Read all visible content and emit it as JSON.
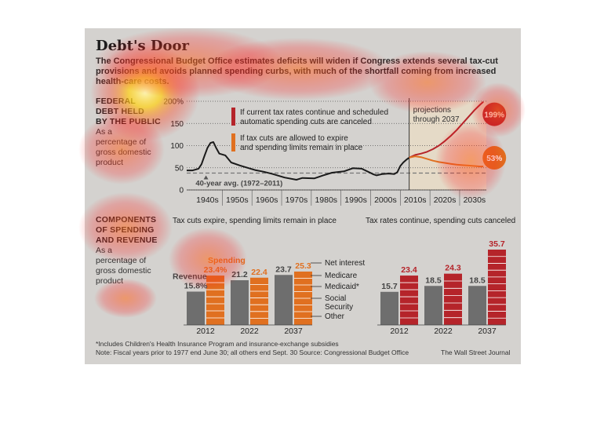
{
  "title": "Debt's Door",
  "subtitle": "The Congressional Budget Office estimates deficits will widen if Congress extends several tax-cut provisions and avoids planned spending curbs, with much of the shortfall coming from increased health-care costs.",
  "top_section": {
    "heading_lines": [
      "FEDERAL",
      "DEBT HELD",
      "BY THE PUBLIC"
    ],
    "sub_lines": [
      "As a",
      "percentage of",
      "gross domestic",
      "product"
    ]
  },
  "bottom_section": {
    "heading_lines": [
      "COMPONENTS",
      "OF SPENDING",
      "AND REVENUE"
    ],
    "sub_lines": [
      "As a",
      "percentage of",
      "gross domestic",
      "product"
    ]
  },
  "footnote": "*Includes Children's Health Insurance Program and insurance-exchange subsidies",
  "note": "Note: Fiscal years prior to 1977 end June 30; all others end Sept. 30   Source: Congressional Budget Office",
  "credit": "The Wall Street Journal",
  "colors": {
    "current_policy": "#b5242a",
    "current_law": "#e07020",
    "historical": "#1a1a1a",
    "revenue": "#6e6e6e",
    "projection_shade": "#e7dcc6",
    "average": "#777777"
  },
  "chart_data": [
    {
      "type": "line",
      "y_ticks": [
        "0",
        "50",
        "100",
        "150",
        "200%"
      ],
      "ylim": [
        0,
        200
      ],
      "x_ticks": [
        "1940s",
        "1950s",
        "1960s",
        "1970s",
        "1980s",
        "1990s",
        "2000s",
        "2010s",
        "2020s",
        "2030s"
      ],
      "xlim": [
        1937,
        2038
      ],
      "projections_label": [
        "projections",
        "through 2037"
      ],
      "average_label": "40-year avg. (1972–2011)",
      "average_value": 38,
      "legend": [
        {
          "key": "current_policy",
          "lines": [
            "If current tax rates continue and scheduled",
            "automatic spending cuts are canceled"
          ]
        },
        {
          "key": "current_law",
          "lines": [
            "If tax cuts are allowed to expire",
            "and spending limits remain in place"
          ]
        }
      ],
      "end_labels": {
        "current_policy": "199%",
        "current_law": "53%"
      },
      "series": [
        {
          "key": "historical",
          "x": [
            1937,
            1939,
            1941,
            1942,
            1943,
            1944,
            1945,
            1946,
            1947,
            1948,
            1950,
            1952,
            1955,
            1958,
            1960,
            1963,
            1966,
            1970,
            1974,
            1976,
            1980,
            1983,
            1986,
            1990,
            1993,
            1996,
            2000,
            2001,
            2003,
            2005,
            2007,
            2008,
            2009,
            2010,
            2011,
            2012
          ],
          "y": [
            44,
            44,
            48,
            58,
            77,
            95,
            106,
            108,
            94,
            82,
            78,
            62,
            55,
            49,
            45,
            41,
            36,
            28,
            23,
            27,
            26,
            33,
            39,
            42,
            49,
            48,
            35,
            33,
            36,
            37,
            36,
            40,
            54,
            62,
            68,
            73
          ]
        },
        {
          "key": "current_policy",
          "x": [
            2012,
            2014,
            2016,
            2018,
            2020,
            2022,
            2024,
            2026,
            2028,
            2030,
            2032,
            2034,
            2036,
            2037
          ],
          "y": [
            73,
            79,
            82,
            86,
            92,
            100,
            110,
            122,
            135,
            150,
            165,
            180,
            193,
            199
          ]
        },
        {
          "key": "current_law",
          "x": [
            2012,
            2014,
            2016,
            2018,
            2020,
            2022,
            2024,
            2026,
            2028,
            2030,
            2032,
            2034,
            2036,
            2037
          ],
          "y": [
            73,
            76,
            74,
            70,
            66,
            63,
            61,
            59,
            57,
            56,
            55,
            54,
            53,
            53
          ]
        }
      ]
    },
    {
      "type": "bar",
      "title": "Tax cuts expire, spending limits remain in place",
      "categories": [
        "2012",
        "2022",
        "2037"
      ],
      "ylim": [
        0,
        40
      ],
      "revenue": [
        15.8,
        21.2,
        23.7
      ],
      "spending": [
        23.4,
        22.4,
        25.3
      ],
      "revenue_labels": [
        "15.8%",
        "21.2",
        "23.7"
      ],
      "spending_labels": [
        "23.4%",
        "22.4",
        "25.3"
      ],
      "revenue_caption": "Revenue",
      "spending_caption": "Spending",
      "components_legend": [
        "Net interest",
        "Medicare",
        "Medicaid*",
        "Social Security",
        "Other"
      ]
    },
    {
      "type": "bar",
      "title": "Tax rates continue, spending cuts canceled",
      "categories": [
        "2012",
        "2022",
        "2037"
      ],
      "ylim": [
        0,
        40
      ],
      "revenue": [
        15.7,
        18.5,
        18.5
      ],
      "spending": [
        23.4,
        24.3,
        35.7
      ],
      "revenue_labels": [
        "15.7",
        "18.5",
        "18.5"
      ],
      "spending_labels": [
        "23.4",
        "24.3",
        "35.7"
      ]
    }
  ]
}
